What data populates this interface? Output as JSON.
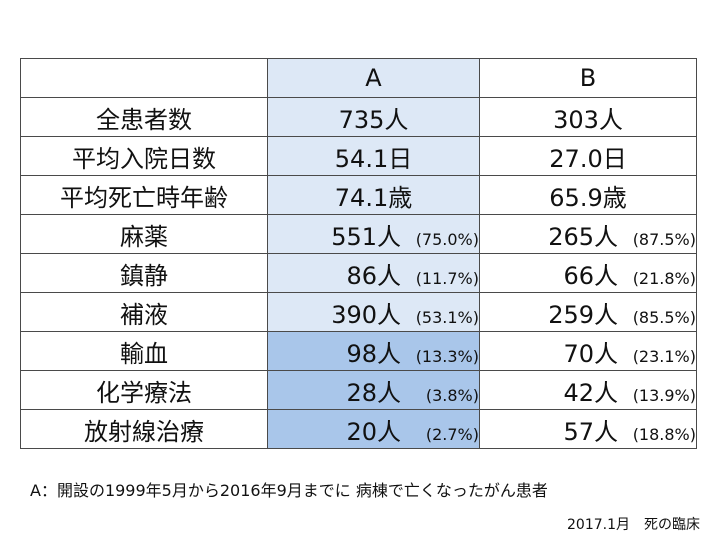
{
  "table": {
    "headers": [
      "",
      "A",
      "B"
    ],
    "rows": [
      {
        "label": "全患者数",
        "a": "735人",
        "a_pct": "",
        "b": "303人",
        "b_pct": ""
      },
      {
        "label": "平均入院日数",
        "a": "54.1日",
        "a_pct": "",
        "b": "27.0日",
        "b_pct": ""
      },
      {
        "label": "平均死亡時年齢",
        "a": "74.1歳",
        "a_pct": "",
        "b": "65.9歳",
        "b_pct": ""
      },
      {
        "label": "麻薬",
        "a": "551人",
        "a_pct": "(75.0%)",
        "b": "265人",
        "b_pct": "(87.5%)"
      },
      {
        "label": "鎮静",
        "a": "86人",
        "a_pct": "(11.7%)",
        "b": "66人",
        "b_pct": "(21.8%)"
      },
      {
        "label": "補液",
        "a": "390人",
        "a_pct": "(53.1%)",
        "b": "259人",
        "b_pct": "(85.5%)"
      },
      {
        "label": "輸血",
        "a": "98人",
        "a_pct": "(13.3%)",
        "b": "70人",
        "b_pct": "(23.1%)"
      },
      {
        "label": "化学療法",
        "a": "28人",
        "a_pct": "(3.8%)",
        "b": "42人",
        "b_pct": "(13.9%)"
      },
      {
        "label": "放射線治療",
        "a": "20人",
        "a_pct": "(2.7%)",
        "b": "57人",
        "b_pct": "(18.8%)"
      }
    ]
  },
  "footnote": "A：開設の1999年5月から2016年9月までに 病棟で亡くなったがん患者",
  "source": "2017.1月　死の臨床",
  "colors": {
    "colA": "#dde8f6",
    "colA_highlight": "#a9c6ea",
    "border": "#4a4a4a"
  }
}
